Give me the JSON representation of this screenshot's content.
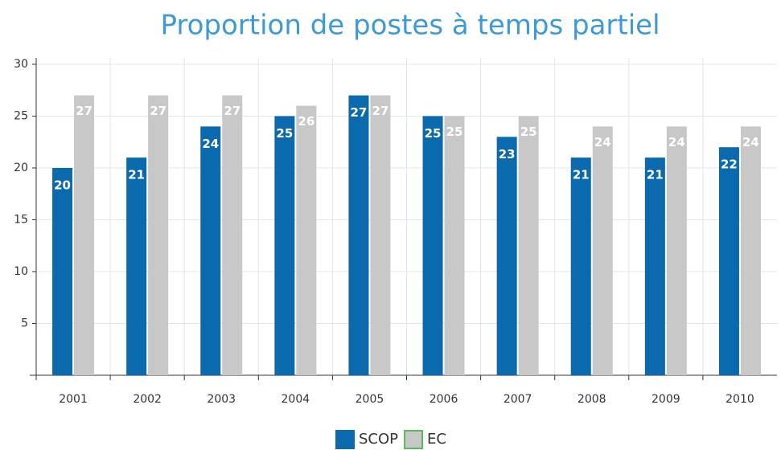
{
  "chart_data": {
    "type": "bar",
    "title": "Proportion de postes à temps partiel",
    "categories": [
      "2001",
      "2002",
      "2003",
      "2004",
      "2005",
      "2006",
      "2007",
      "2008",
      "2009",
      "2010"
    ],
    "series": [
      {
        "name": "SCOP",
        "color": "#0a6aad",
        "values": [
          20,
          21,
          24,
          25,
          27,
          25,
          23,
          21,
          21,
          22
        ]
      },
      {
        "name": "EC",
        "color": "#c8c8c8",
        "values": [
          27,
          27,
          27,
          26,
          27,
          25,
          25,
          24,
          24,
          24
        ]
      }
    ],
    "ylim": [
      0,
      30
    ],
    "yticks": [
      5,
      10,
      15,
      20,
      25,
      30
    ],
    "grid": true,
    "legend": "bottom"
  }
}
